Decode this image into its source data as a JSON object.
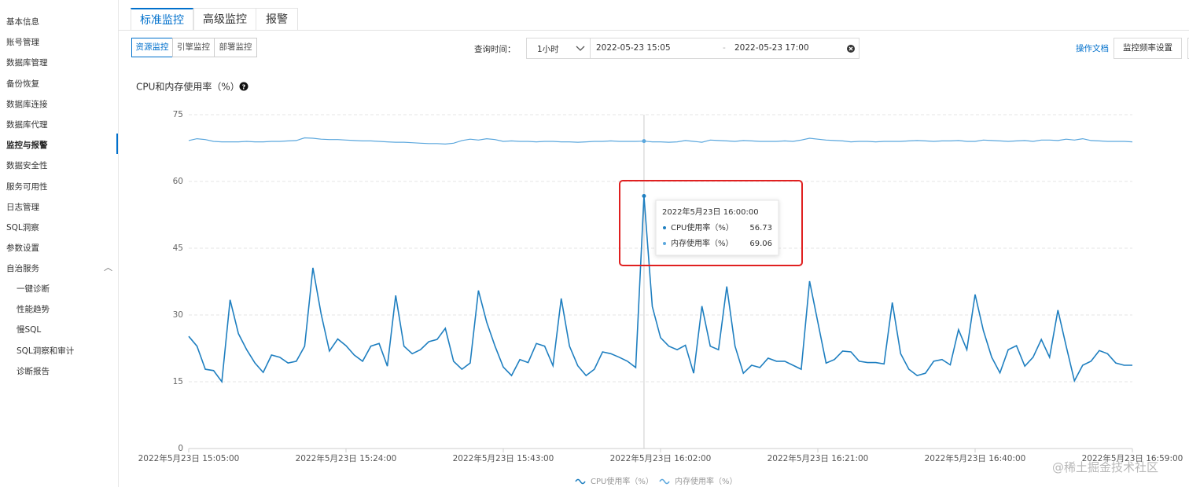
{
  "sidebar": {
    "items": [
      "基本信息",
      "账号管理",
      "数据库管理",
      "备份恢复",
      "数据库连接",
      "数据库代理",
      "监控与报警",
      "数据安全性",
      "服务可用性",
      "日志管理",
      "SQL洞察",
      "参数设置"
    ],
    "group": {
      "label": "自治服务",
      "items": [
        "一键诊断",
        "性能趋势",
        "慢SQL",
        "SQL洞察和审计",
        "诊断报告"
      ]
    }
  },
  "tabs": [
    "标准监控",
    "高级监控",
    "报警"
  ],
  "subtabs": [
    "资源监控",
    "引擎监控",
    "部署监控"
  ],
  "query": {
    "label": "查询时间：",
    "range": "1小时",
    "start": "2022-05-23 15:05",
    "separator": "-",
    "end": "2022-05-23 17:00"
  },
  "actions": {
    "doc_link": "操作文档",
    "frequency_button": "监控频率设置"
  },
  "chart_data": {
    "type": "line",
    "title": "CPU和内存使用率（%）",
    "x": [
      "2022年5月23日 15:05:00",
      "2022年5月23日 15:06:00",
      "2022年5月23日 15:07:00",
      "2022年5月23日 15:08:00",
      "2022年5月23日 15:09:00",
      "2022年5月23日 15:10:00",
      "2022年5月23日 15:11:00",
      "2022年5月23日 15:12:00",
      "2022年5月23日 15:13:00",
      "2022年5月23日 15:14:00",
      "2022年5月23日 15:15:00",
      "2022年5月23日 15:16:00",
      "2022年5月23日 15:17:00",
      "2022年5月23日 15:18:00",
      "2022年5月23日 15:19:00",
      "2022年5月23日 15:20:00",
      "2022年5月23日 15:21:00",
      "2022年5月23日 15:22:00",
      "2022年5月23日 15:23:00",
      "2022年5月23日 15:24:00",
      "2022年5月23日 15:25:00",
      "2022年5月23日 15:26:00",
      "2022年5月23日 15:27:00",
      "2022年5月23日 15:28:00",
      "2022年5月23日 15:29:00",
      "2022年5月23日 15:30:00",
      "2022年5月23日 15:31:00",
      "2022年5月23日 15:32:00",
      "2022年5月23日 15:33:00",
      "2022年5月23日 15:34:00",
      "2022年5月23日 15:35:00",
      "2022年5月23日 15:36:00",
      "2022年5月23日 15:37:00",
      "2022年5月23日 15:38:00",
      "2022年5月23日 15:39:00",
      "2022年5月23日 15:40:00",
      "2022年5月23日 15:41:00",
      "2022年5月23日 15:42:00",
      "2022年5月23日 15:43:00",
      "2022年5月23日 15:44:00",
      "2022年5月23日 15:45:00",
      "2022年5月23日 15:46:00",
      "2022年5月23日 15:47:00",
      "2022年5月23日 15:48:00",
      "2022年5月23日 15:49:00",
      "2022年5月23日 15:50:00",
      "2022年5月23日 15:51:00",
      "2022年5月23日 15:52:00",
      "2022年5月23日 15:53:00",
      "2022年5月23日 15:54:00",
      "2022年5月23日 15:55:00",
      "2022年5月23日 15:56:00",
      "2022年5月23日 15:57:00",
      "2022年5月23日 15:58:00",
      "2022年5月23日 15:59:00",
      "2022年5月23日 16:00:00",
      "2022年5月23日 16:01:00",
      "2022年5月23日 16:02:00",
      "2022年5月23日 16:03:00",
      "2022年5月23日 16:04:00",
      "2022年5月23日 16:05:00",
      "2022年5月23日 16:06:00",
      "2022年5月23日 16:07:00",
      "2022年5月23日 16:08:00",
      "2022年5月23日 16:09:00",
      "2022年5月23日 16:10:00",
      "2022年5月23日 16:11:00",
      "2022年5月23日 16:12:00",
      "2022年5月23日 16:13:00",
      "2022年5月23日 16:14:00",
      "2022年5月23日 16:15:00",
      "2022年5月23日 16:16:00",
      "2022年5月23日 16:17:00",
      "2022年5月23日 16:18:00",
      "2022年5月23日 16:19:00",
      "2022年5月23日 16:20:00",
      "2022年5月23日 16:21:00",
      "2022年5月23日 16:22:00",
      "2022年5月23日 16:23:00",
      "2022年5月23日 16:24:00",
      "2022年5月23日 16:25:00",
      "2022年5月23日 16:26:00",
      "2022年5月23日 16:27:00",
      "2022年5月23日 16:28:00",
      "2022年5月23日 16:29:00",
      "2022年5月23日 16:30:00",
      "2022年5月23日 16:31:00",
      "2022年5月23日 16:32:00",
      "2022年5月23日 16:33:00",
      "2022年5月23日 16:34:00",
      "2022年5月23日 16:35:00",
      "2022年5月23日 16:36:00",
      "2022年5月23日 16:37:00",
      "2022年5月23日 16:38:00",
      "2022年5月23日 16:39:00",
      "2022年5月23日 16:40:00",
      "2022年5月23日 16:41:00",
      "2022年5月23日 16:42:00",
      "2022年5月23日 16:43:00",
      "2022年5月23日 16:44:00",
      "2022年5月23日 16:45:00",
      "2022年5月23日 16:46:00",
      "2022年5月23日 16:47:00",
      "2022年5月23日 16:48:00",
      "2022年5月23日 16:49:00",
      "2022年5月23日 16:50:00",
      "2022年5月23日 16:51:00",
      "2022年5月23日 16:52:00",
      "2022年5月23日 16:53:00",
      "2022年5月23日 16:54:00",
      "2022年5月23日 16:55:00",
      "2022年5月23日 16:56:00",
      "2022年5月23日 16:57:00",
      "2022年5月23日 16:58:00",
      "2022年5月23日 16:59:00"
    ],
    "series": [
      {
        "name": "CPU使用率（%）",
        "color": "#1f7fc0",
        "values": [
          25.2,
          23,
          17.8,
          17.5,
          15,
          33.4,
          25.8,
          22.2,
          19.2,
          17.1,
          21,
          20.5,
          19.2,
          19.6,
          23,
          40.6,
          30.2,
          21.9,
          24.6,
          23.1,
          21,
          19.6,
          23,
          23.6,
          18.5,
          34.4,
          23,
          21.3,
          22.2,
          24,
          24.5,
          27,
          19.6,
          17.8,
          19.2,
          35.5,
          28.4,
          23,
          18.3,
          16.4,
          20,
          19.3,
          23.6,
          23,
          18.6,
          33.7,
          23,
          18.6,
          16.4,
          17.8,
          21.7,
          21.3,
          20.5,
          19.6,
          18.2,
          56.73,
          31.9,
          24.9,
          23,
          22.2,
          23.2,
          16.9,
          32,
          23,
          22.2,
          36.4,
          23,
          16.9,
          18.7,
          18.2,
          20.3,
          19.6,
          19.6,
          18.7,
          17.8,
          37.6,
          28.4,
          19.2,
          20,
          21.9,
          21.7,
          19.6,
          19.3,
          19.3,
          19,
          32.8,
          21.3,
          17.8,
          16.4,
          16.9,
          19.6,
          20,
          18.8,
          26.7,
          22.2,
          34.6,
          26.5,
          20.5,
          17,
          22.2,
          23.1,
          18.5,
          20.5,
          24.5,
          20.5,
          31.1,
          23,
          15.2,
          18.7,
          19.6,
          22,
          21.3,
          19.2,
          18.7,
          18.7
        ]
      },
      {
        "name": "内存使用率（%）",
        "color": "#5ba7dd",
        "values": [
          69.2,
          69.6,
          69.4,
          69.0,
          68.9,
          68.9,
          68.9,
          69.0,
          68.9,
          68.9,
          69.0,
          69.0,
          69.1,
          69.2,
          69.8,
          69.7,
          69.5,
          69.4,
          69.4,
          69.3,
          69.2,
          69.1,
          69.1,
          69.0,
          68.9,
          68.8,
          68.8,
          68.7,
          68.6,
          68.5,
          68.5,
          68.4,
          68.6,
          69.2,
          69.5,
          69.3,
          69.6,
          69.4,
          69.0,
          69.1,
          69.0,
          69.0,
          68.9,
          69.0,
          69.0,
          68.9,
          68.9,
          68.8,
          68.9,
          69.0,
          69.0,
          69.1,
          69.0,
          69.0,
          69.0,
          69.06,
          68.9,
          68.9,
          68.8,
          68.9,
          69.2,
          69.0,
          68.8,
          69.3,
          69.2,
          69.1,
          69.0,
          69.2,
          69.1,
          69.0,
          69.0,
          69.0,
          69.1,
          69.0,
          69.3,
          69.7,
          69.5,
          69.3,
          69.2,
          69.1,
          68.9,
          69.0,
          69.0,
          68.9,
          69.0,
          69.0,
          69.0,
          69.1,
          69.2,
          69.1,
          69.0,
          69.1,
          69.1,
          69.2,
          69.0,
          69.0,
          69.3,
          69.2,
          69.1,
          69.0,
          69.1,
          69.2,
          69.0,
          69.3,
          69.3,
          69.2,
          69.5,
          69.3,
          69.6,
          69.2,
          69.1,
          69.0,
          69.0,
          69.0,
          68.9
        ]
      }
    ],
    "ylim": [
      0,
      75
    ],
    "yticks": [
      0,
      15,
      30,
      45,
      60,
      75
    ],
    "grid": true,
    "legend": "bottom"
  },
  "watermark": "@稀土掘金技术社区"
}
